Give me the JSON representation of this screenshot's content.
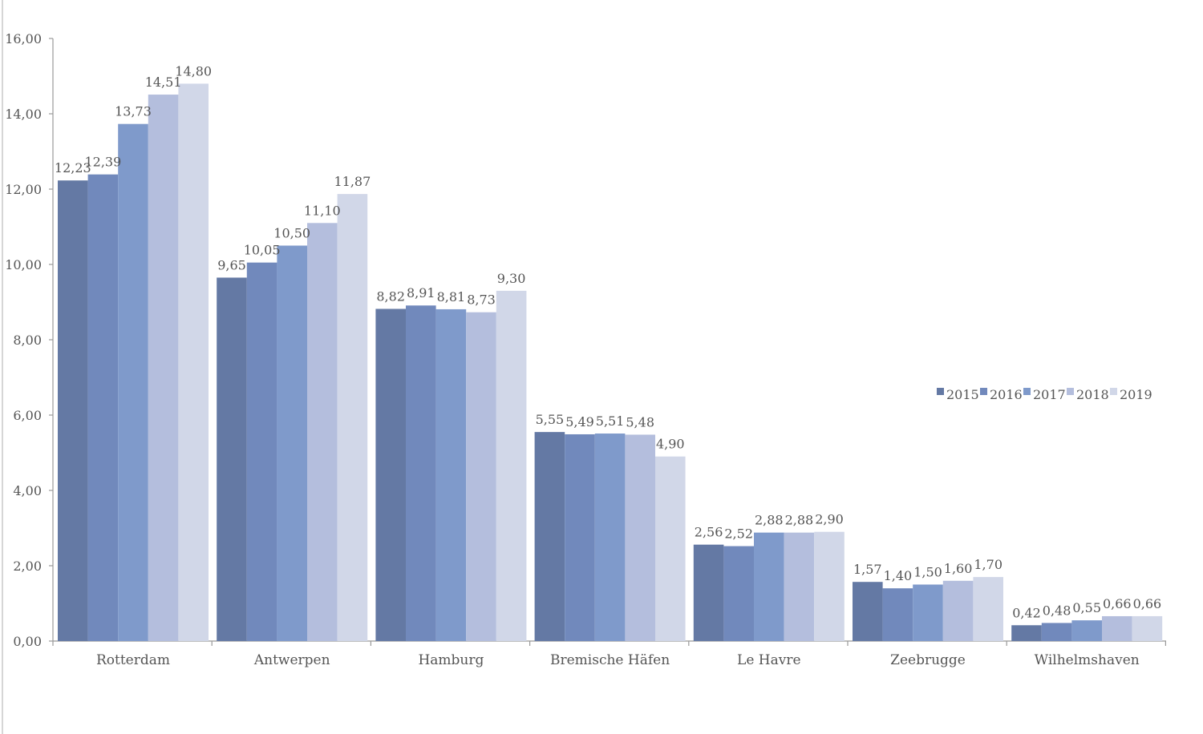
{
  "chart_data": {
    "type": "bar",
    "title": "",
    "xlabel": "",
    "ylabel": "",
    "ylim": [
      0,
      16
    ],
    "yticks": [
      "0,00",
      "2,00",
      "4,00",
      "6,00",
      "8,00",
      "10,00",
      "12,00",
      "14,00",
      "16,00"
    ],
    "grid": false,
    "legend_position": "right",
    "categories": [
      "Rotterdam",
      "Antwerpen",
      "Hamburg",
      "Bremische Häfen",
      "Le Havre",
      "Zeebrugge",
      "Wilhelmshaven"
    ],
    "series": [
      {
        "name": "2015",
        "color": "#6479a4",
        "values": [
          12.23,
          9.65,
          8.82,
          5.55,
          2.56,
          1.57,
          0.42
        ],
        "labels": [
          "12,23",
          "9,65",
          "8,82",
          "5,55",
          "2,56",
          "1,57",
          "0,42"
        ]
      },
      {
        "name": "2016",
        "color": "#7189bc",
        "values": [
          12.39,
          10.05,
          8.91,
          5.49,
          2.52,
          1.4,
          0.48
        ],
        "labels": [
          "12,39",
          "10,05",
          "8,91",
          "5,49",
          "2,52",
          "1,40",
          "0,48"
        ]
      },
      {
        "name": "2017",
        "color": "#7f9acb",
        "values": [
          13.73,
          10.5,
          8.81,
          5.51,
          2.88,
          1.5,
          0.55
        ],
        "labels": [
          "13,73",
          "10,50",
          "8,81",
          "5,51",
          "2,88",
          "1,50",
          "0,55"
        ]
      },
      {
        "name": "2018",
        "color": "#b4bedd",
        "values": [
          14.51,
          11.1,
          8.73,
          5.48,
          2.88,
          1.6,
          0.66
        ],
        "labels": [
          "14,51",
          "11,10",
          "8,73",
          "5,48",
          "2,88",
          "1,60",
          "0,66"
        ]
      },
      {
        "name": "2019",
        "color": "#d1d7e8",
        "values": [
          14.8,
          11.87,
          9.3,
          4.9,
          2.9,
          1.7,
          0.66
        ],
        "labels": [
          "14,80",
          "11,87",
          "9,30",
          "4,90",
          "2,90",
          "1,70",
          "0,66"
        ]
      }
    ]
  }
}
